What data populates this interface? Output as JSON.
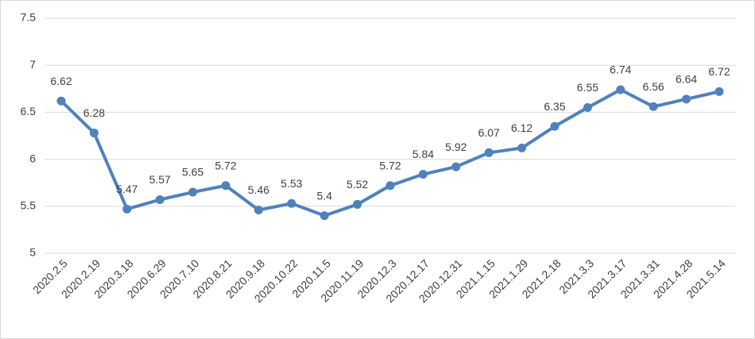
{
  "chart_data": {
    "type": "line",
    "categories": [
      "2020.2.5",
      "2020.2.19",
      "2020.3.18",
      "2020.6.29",
      "2020.7.10",
      "2020.8.21",
      "2020.9.18",
      "2020.10.22",
      "2020.11.5",
      "2020.11.19",
      "2020.12.3",
      "2020.12.17",
      "2020.12.31",
      "2021.1.15",
      "2021.1.29",
      "2021.2.18",
      "2021.3.3",
      "2021.3.17",
      "2021.3.31",
      "2021.4.28",
      "2021.5.14"
    ],
    "values": [
      6.62,
      6.28,
      5.47,
      5.57,
      5.65,
      5.72,
      5.46,
      5.53,
      5.4,
      5.52,
      5.72,
      5.84,
      5.92,
      6.07,
      6.12,
      6.35,
      6.55,
      6.74,
      6.56,
      6.64,
      6.72
    ],
    "color": "#4f81bd",
    "ylim": [
      5,
      7.5
    ],
    "yticks": [
      5,
      5.5,
      6,
      6.5,
      7,
      7.5
    ],
    "grid": true
  }
}
